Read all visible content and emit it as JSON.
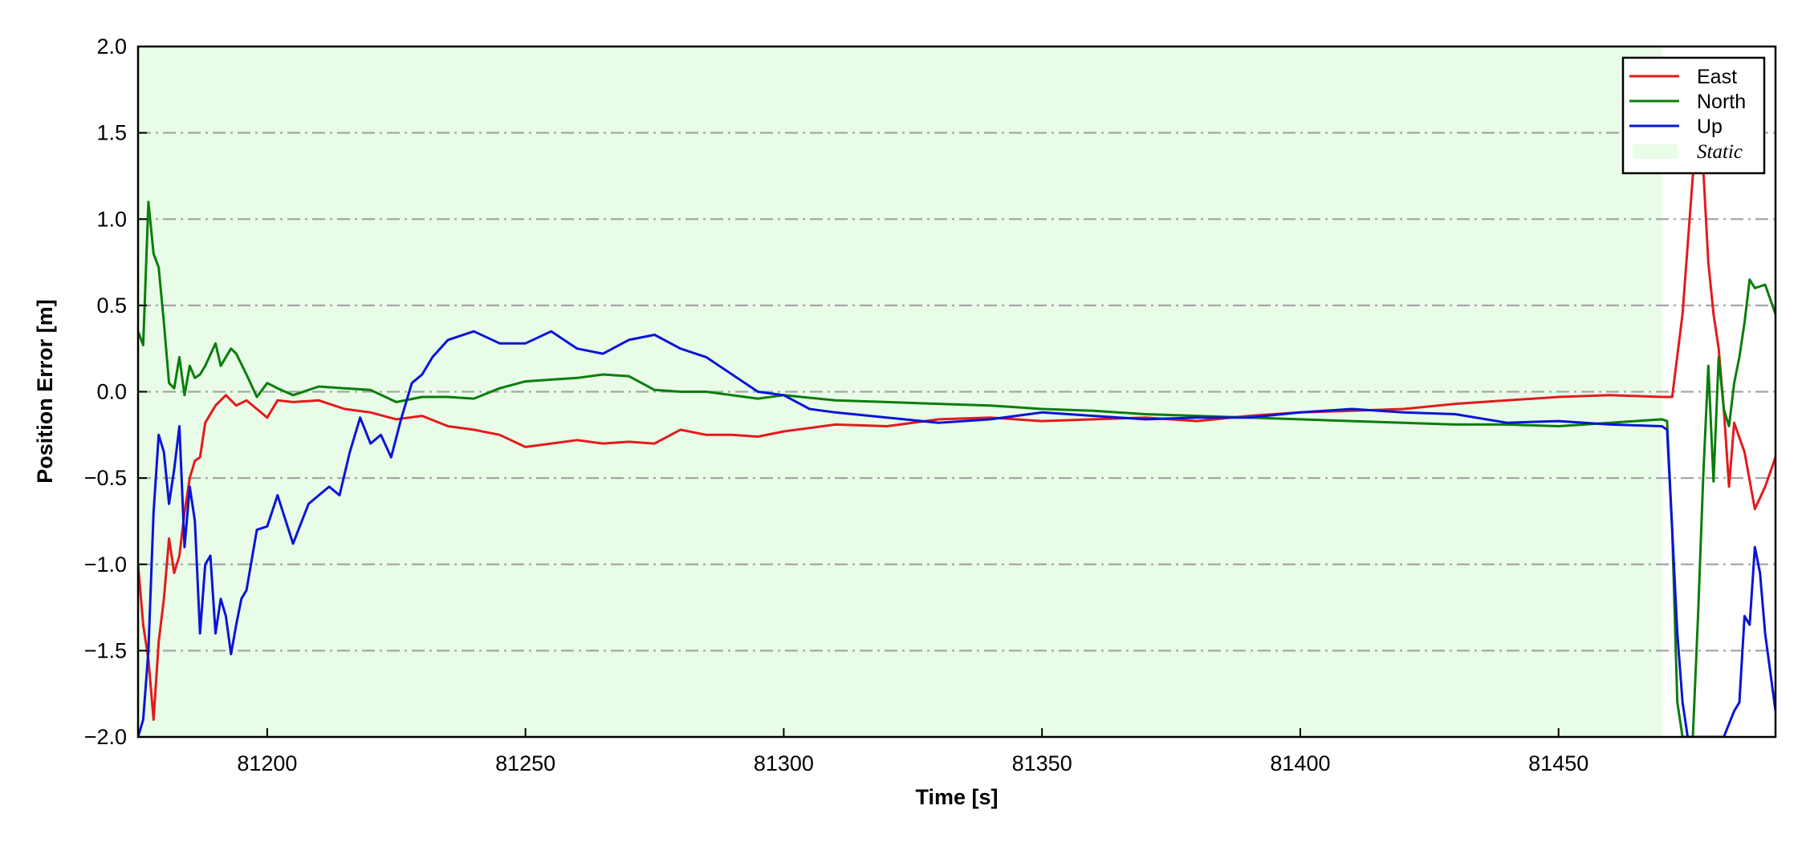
{
  "chart_data": {
    "type": "line",
    "title": "",
    "xlabel": "Time [s]",
    "ylabel": "Position Error [m]",
    "xlim": [
      81175,
      81492
    ],
    "ylim": [
      -2.0,
      2.0
    ],
    "xticks": [
      81200,
      81250,
      81300,
      81350,
      81400,
      81450
    ],
    "xtick_labels": [
      "81200",
      "81250",
      "81300",
      "81350",
      "81400",
      "81450"
    ],
    "yticks": [
      -2.0,
      -1.5,
      -1.0,
      -0.5,
      0.0,
      0.5,
      1.0,
      1.5,
      2.0
    ],
    "ytick_labels": [
      "−2.0",
      "−1.5",
      "−1.0",
      "−0.5",
      "0.0",
      "0.5",
      "1.0",
      "1.5",
      "2.0"
    ],
    "grid": "horizontal dash-dot",
    "legend_position": "top-right",
    "static_region": {
      "label": "Static",
      "x_start": 81175,
      "x_end": 81470,
      "color": "#e8fce8"
    },
    "series": [
      {
        "name": "East",
        "color": "#e41a1c",
        "x": [
          81175,
          81176,
          81177,
          81178,
          81179,
          81180,
          81181,
          81182,
          81183,
          81184,
          81185,
          81186,
          81187,
          81188,
          81190,
          81192,
          81194,
          81196,
          81198,
          81200,
          81202,
          81205,
          81210,
          81215,
          81220,
          81225,
          81230,
          81235,
          81240,
          81245,
          81250,
          81255,
          81260,
          81265,
          81270,
          81275,
          81280,
          81285,
          81290,
          81295,
          81300,
          81310,
          81320,
          81330,
          81340,
          81350,
          81360,
          81370,
          81380,
          81390,
          81400,
          81410,
          81420,
          81430,
          81440,
          81450,
          81460,
          81470,
          81472,
          81474,
          81476,
          81477,
          81478,
          81479,
          81480,
          81481,
          81482,
          81483,
          81484,
          81486,
          81488,
          81490,
          81492
        ],
        "values": [
          -1.0,
          -1.35,
          -1.55,
          -1.9,
          -1.45,
          -1.2,
          -0.85,
          -1.05,
          -0.95,
          -0.7,
          -0.5,
          -0.4,
          -0.38,
          -0.18,
          -0.08,
          -0.02,
          -0.08,
          -0.05,
          -0.1,
          -0.15,
          -0.05,
          -0.06,
          -0.05,
          -0.1,
          -0.12,
          -0.16,
          -0.14,
          -0.2,
          -0.22,
          -0.25,
          -0.32,
          -0.3,
          -0.28,
          -0.3,
          -0.29,
          -0.3,
          -0.22,
          -0.25,
          -0.25,
          -0.26,
          -0.23,
          -0.19,
          -0.2,
          -0.16,
          -0.15,
          -0.17,
          -0.16,
          -0.15,
          -0.17,
          -0.14,
          -0.12,
          -0.11,
          -0.1,
          -0.07,
          -0.05,
          -0.03,
          -0.02,
          -0.03,
          -0.03,
          0.45,
          1.25,
          1.5,
          1.3,
          0.75,
          0.45,
          0.25,
          -0.1,
          -0.55,
          -0.18,
          -0.35,
          -0.68,
          -0.55,
          -0.38
        ]
      },
      {
        "name": "North",
        "color": "#0b7d0b",
        "x": [
          81175,
          81176,
          81177,
          81178,
          81179,
          81180,
          81181,
          81182,
          81183,
          81184,
          81185,
          81186,
          81187,
          81188,
          81190,
          81191,
          81193,
          81194,
          81196,
          81198,
          81200,
          81202,
          81205,
          81210,
          81215,
          81220,
          81225,
          81230,
          81235,
          81240,
          81245,
          81250,
          81255,
          81260,
          81265,
          81270,
          81275,
          81280,
          81285,
          81290,
          81295,
          81300,
          81310,
          81320,
          81330,
          81340,
          81350,
          81360,
          81370,
          81380,
          81390,
          81400,
          81410,
          81420,
          81430,
          81440,
          81450,
          81460,
          81470,
          81471,
          81472,
          81473,
          81474,
          81475,
          81476,
          81477,
          81478,
          81479,
          81480,
          81481,
          81482,
          81483,
          81484,
          81485,
          81486,
          81487,
          81488,
          81490,
          81492
        ],
        "values": [
          0.35,
          0.27,
          1.1,
          0.8,
          0.72,
          0.4,
          0.05,
          0.02,
          0.2,
          -0.02,
          0.15,
          0.08,
          0.1,
          0.15,
          0.28,
          0.15,
          0.25,
          0.22,
          0.1,
          -0.03,
          0.05,
          0.02,
          -0.02,
          0.03,
          0.02,
          0.01,
          -0.06,
          -0.03,
          -0.03,
          -0.04,
          0.02,
          0.06,
          0.07,
          0.08,
          0.1,
          0.09,
          0.01,
          0.0,
          0.0,
          -0.02,
          -0.04,
          -0.02,
          -0.05,
          -0.06,
          -0.07,
          -0.08,
          -0.1,
          -0.11,
          -0.13,
          -0.14,
          -0.15,
          -0.16,
          -0.17,
          -0.18,
          -0.19,
          -0.19,
          -0.2,
          -0.18,
          -0.16,
          -0.17,
          -0.8,
          -1.8,
          -2.0,
          -2.0,
          -2.0,
          -1.3,
          -0.5,
          0.15,
          -0.52,
          0.2,
          -0.1,
          -0.2,
          0.05,
          0.2,
          0.4,
          0.65,
          0.6,
          0.62,
          0.45
        ]
      },
      {
        "name": "Up",
        "color": "#0a14d6",
        "x": [
          81175,
          81176,
          81177,
          81178,
          81179,
          81180,
          81181,
          81182,
          81183,
          81184,
          81185,
          81186,
          81187,
          81188,
          81189,
          81190,
          81191,
          81192,
          81193,
          81194,
          81195,
          81196,
          81198,
          81200,
          81202,
          81205,
          81208,
          81210,
          81212,
          81214,
          81216,
          81218,
          81220,
          81222,
          81224,
          81226,
          81228,
          81230,
          81232,
          81235,
          81240,
          81245,
          81250,
          81255,
          81260,
          81265,
          81270,
          81275,
          81280,
          81285,
          81290,
          81295,
          81300,
          81305,
          81310,
          81320,
          81330,
          81340,
          81350,
          81360,
          81370,
          81380,
          81390,
          81400,
          81410,
          81420,
          81430,
          81440,
          81450,
          81460,
          81470,
          81471,
          81472,
          81473,
          81474,
          81475,
          81476,
          81478,
          81480,
          81482,
          81484,
          81485,
          81486,
          81487,
          81488,
          81489,
          81490,
          81492
        ],
        "values": [
          -2.0,
          -1.9,
          -1.5,
          -0.7,
          -0.25,
          -0.35,
          -0.65,
          -0.45,
          -0.2,
          -0.9,
          -0.55,
          -0.75,
          -1.4,
          -1.0,
          -0.95,
          -1.4,
          -1.2,
          -1.3,
          -1.52,
          -1.35,
          -1.2,
          -1.15,
          -0.8,
          -0.78,
          -0.6,
          -0.88,
          -0.65,
          -0.6,
          -0.55,
          -0.6,
          -0.35,
          -0.15,
          -0.3,
          -0.25,
          -0.38,
          -0.15,
          0.05,
          0.1,
          0.2,
          0.3,
          0.35,
          0.28,
          0.28,
          0.35,
          0.25,
          0.22,
          0.3,
          0.33,
          0.25,
          0.2,
          0.1,
          0.0,
          -0.02,
          -0.1,
          -0.12,
          -0.15,
          -0.18,
          -0.16,
          -0.12,
          -0.14,
          -0.16,
          -0.15,
          -0.15,
          -0.12,
          -0.1,
          -0.12,
          -0.13,
          -0.18,
          -0.17,
          -0.19,
          -0.2,
          -0.22,
          -0.8,
          -1.4,
          -1.8,
          -2.0,
          -2.0,
          -2.0,
          -2.0,
          -2.0,
          -1.85,
          -1.8,
          -1.3,
          -1.35,
          -0.9,
          -1.05,
          -1.4,
          -1.85
        ]
      }
    ]
  }
}
